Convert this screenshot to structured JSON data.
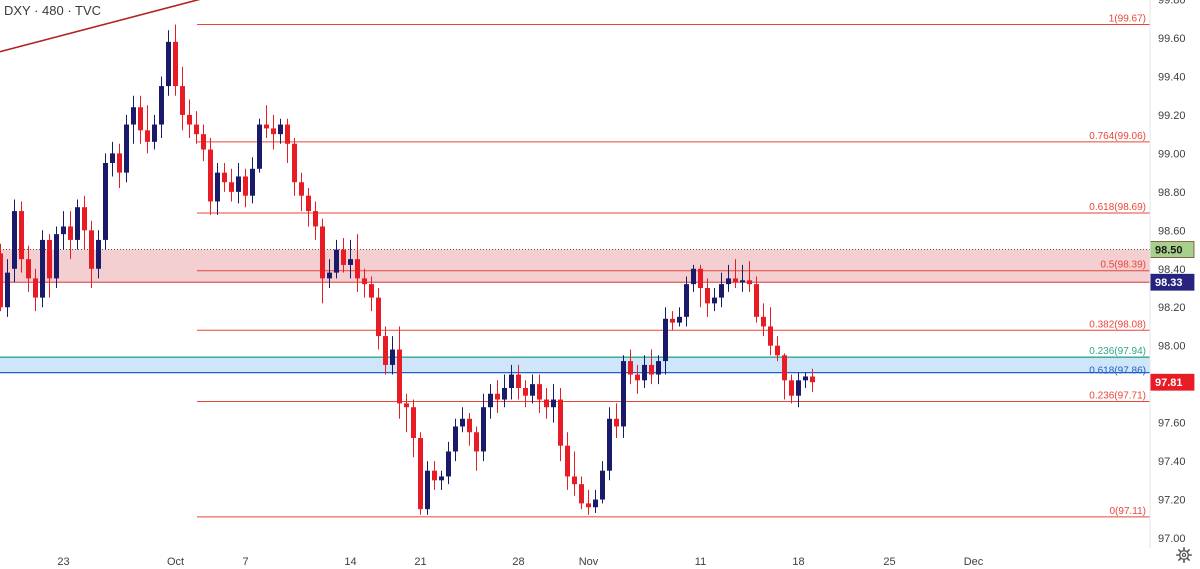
{
  "header": {
    "symbol": "DXY",
    "interval": "480",
    "source": "TVC"
  },
  "colors": {
    "up": "#1a1a6b",
    "down": "#e81c25",
    "fib": "#e8463a",
    "zone_red_fill": "#f3cfd2",
    "zone_red_line": "#e1565c",
    "zone_blue_fill": "#cfe6fa",
    "zone_blue_line": "#1f5fc9",
    "zone_green_line": "#2ea58a",
    "trend": "#b22222",
    "axis_text": "#404040"
  },
  "chart_data": {
    "type": "candlestick",
    "title": "DXY · 480 · TVC",
    "y_axis": {
      "range": [
        96.95,
        99.8
      ],
      "ticks": [
        "97.00",
        "97.20",
        "97.40",
        "97.60",
        "97.80",
        "98.00",
        "98.20",
        "98.40",
        "98.60",
        "98.80",
        "99.00",
        "99.20",
        "99.40",
        "99.60",
        "99.80"
      ]
    },
    "x_axis": {
      "ticks": [
        {
          "label": "23",
          "i": 9
        },
        {
          "label": "Oct",
          "i": 25
        },
        {
          "label": "7",
          "i": 35
        },
        {
          "label": "14",
          "i": 50
        },
        {
          "label": "21",
          "i": 60
        },
        {
          "label": "28",
          "i": 74
        },
        {
          "label": "Nov",
          "i": 84
        },
        {
          "label": "11",
          "i": 100
        },
        {
          "label": "18",
          "i": 114
        },
        {
          "label": "25",
          "i": 127
        },
        {
          "label": "Dec",
          "i": 139
        }
      ]
    },
    "candles": [
      [
        98.48,
        98.2,
        98.53,
        98.18
      ],
      [
        98.2,
        98.38,
        98.45,
        98.15
      ],
      [
        98.4,
        98.7,
        98.76,
        98.33
      ],
      [
        98.7,
        98.45,
        98.75,
        98.38
      ],
      [
        98.45,
        98.35,
        98.52,
        98.28
      ],
      [
        98.35,
        98.25,
        98.4,
        98.18
      ],
      [
        98.25,
        98.55,
        98.6,
        98.2
      ],
      [
        98.55,
        98.35,
        98.58,
        98.25
      ],
      [
        98.35,
        98.58,
        98.62,
        98.3
      ],
      [
        98.58,
        98.62,
        98.7,
        98.5
      ],
      [
        98.62,
        98.55,
        98.7,
        98.45
      ],
      [
        98.55,
        98.72,
        98.76,
        98.5
      ],
      [
        98.72,
        98.6,
        98.78,
        98.5
      ],
      [
        98.6,
        98.4,
        98.65,
        98.3
      ],
      [
        98.4,
        98.55,
        98.6,
        98.35
      ],
      [
        98.55,
        98.95,
        99.0,
        98.5
      ],
      [
        98.95,
        99.0,
        99.06,
        98.88
      ],
      [
        99.0,
        98.9,
        99.05,
        98.82
      ],
      [
        98.9,
        99.15,
        99.2,
        98.85
      ],
      [
        99.15,
        99.24,
        99.3,
        99.05
      ],
      [
        99.24,
        99.12,
        99.3,
        99.05
      ],
      [
        99.12,
        99.06,
        99.25,
        99.0
      ],
      [
        99.06,
        99.15,
        99.2,
        99.02
      ],
      [
        99.15,
        99.35,
        99.4,
        99.08
      ],
      [
        99.35,
        99.58,
        99.64,
        99.3
      ],
      [
        99.58,
        99.35,
        99.67,
        99.3
      ],
      [
        99.35,
        99.2,
        99.45,
        99.12
      ],
      [
        99.2,
        99.15,
        99.28,
        99.08
      ],
      [
        99.15,
        99.1,
        99.22,
        99.05
      ],
      [
        99.1,
        99.02,
        99.15,
        98.96
      ],
      [
        99.02,
        98.75,
        99.08,
        98.68
      ],
      [
        98.75,
        98.9,
        98.95,
        98.68
      ],
      [
        98.9,
        98.85,
        98.95,
        98.8
      ],
      [
        98.85,
        98.8,
        98.92,
        98.75
      ],
      [
        98.8,
        98.88,
        98.95,
        98.74
      ],
      [
        98.88,
        98.78,
        98.92,
        98.72
      ],
      [
        98.78,
        98.92,
        98.98,
        98.74
      ],
      [
        98.92,
        99.15,
        99.18,
        98.9
      ],
      [
        99.15,
        99.13,
        99.25,
        99.08
      ],
      [
        99.13,
        99.1,
        99.2,
        99.02
      ],
      [
        99.1,
        99.15,
        99.18,
        99.05
      ],
      [
        99.15,
        99.05,
        99.18,
        98.95
      ],
      [
        99.05,
        98.85,
        99.08,
        98.78
      ],
      [
        98.85,
        98.78,
        98.9,
        98.7
      ],
      [
        98.78,
        98.7,
        98.82,
        98.62
      ],
      [
        98.7,
        98.62,
        98.75,
        98.55
      ],
      [
        98.62,
        98.35,
        98.66,
        98.22
      ],
      [
        98.35,
        98.38,
        98.45,
        98.3
      ],
      [
        98.38,
        98.5,
        98.55,
        98.35
      ],
      [
        98.5,
        98.42,
        98.56,
        98.38
      ],
      [
        98.42,
        98.45,
        98.55,
        98.35
      ],
      [
        98.45,
        98.35,
        98.58,
        98.28
      ],
      [
        98.35,
        98.32,
        98.4,
        98.25
      ],
      [
        98.32,
        98.25,
        98.36,
        98.18
      ],
      [
        98.25,
        98.05,
        98.3,
        97.98
      ],
      [
        98.05,
        97.9,
        98.1,
        97.85
      ],
      [
        97.9,
        97.98,
        98.05,
        97.85
      ],
      [
        97.98,
        97.7,
        98.1,
        97.62
      ],
      [
        97.7,
        97.68,
        97.75,
        97.55
      ],
      [
        97.68,
        97.52,
        97.72,
        97.42
      ],
      [
        97.52,
        97.15,
        97.55,
        97.12
      ],
      [
        97.15,
        97.35,
        97.4,
        97.12
      ],
      [
        97.35,
        97.3,
        97.4,
        97.25
      ],
      [
        97.3,
        97.32,
        97.35,
        97.25
      ],
      [
        97.32,
        97.45,
        97.5,
        97.28
      ],
      [
        97.45,
        97.58,
        97.62,
        97.4
      ],
      [
        97.58,
        97.62,
        97.68,
        97.55
      ],
      [
        97.62,
        97.55,
        97.65,
        97.48
      ],
      [
        97.55,
        97.45,
        97.58,
        97.35
      ],
      [
        97.45,
        97.68,
        97.75,
        97.4
      ],
      [
        97.68,
        97.75,
        97.8,
        97.62
      ],
      [
        97.75,
        97.72,
        97.82,
        97.65
      ],
      [
        97.72,
        97.78,
        97.85,
        97.68
      ],
      [
        97.78,
        97.85,
        97.9,
        97.72
      ],
      [
        97.85,
        97.78,
        97.9,
        97.72
      ],
      [
        97.78,
        97.74,
        97.82,
        97.68
      ],
      [
        97.74,
        97.8,
        97.85,
        97.7
      ],
      [
        97.8,
        97.72,
        97.85,
        97.65
      ],
      [
        97.72,
        97.68,
        97.78,
        97.62
      ],
      [
        97.68,
        97.72,
        97.8,
        97.6
      ],
      [
        97.72,
        97.48,
        97.78,
        97.4
      ],
      [
        97.48,
        97.32,
        97.55,
        97.25
      ],
      [
        97.32,
        97.28,
        97.45,
        97.22
      ],
      [
        97.28,
        97.18,
        97.32,
        97.15
      ],
      [
        97.18,
        97.16,
        97.25,
        97.12
      ],
      [
        97.16,
        97.2,
        97.25,
        97.13
      ],
      [
        97.2,
        97.35,
        97.4,
        97.18
      ],
      [
        97.35,
        97.62,
        97.68,
        97.3
      ],
      [
        97.62,
        97.58,
        97.7,
        97.52
      ],
      [
        97.58,
        97.92,
        97.95,
        97.52
      ],
      [
        97.92,
        97.85,
        97.98,
        97.8
      ],
      [
        97.85,
        97.82,
        97.9,
        97.75
      ],
      [
        97.82,
        97.9,
        97.95,
        97.78
      ],
      [
        97.9,
        97.85,
        97.98,
        97.8
      ],
      [
        97.85,
        97.92,
        97.95,
        97.8
      ],
      [
        97.92,
        98.14,
        98.2,
        97.85
      ],
      [
        98.14,
        98.12,
        98.18,
        98.08
      ],
      [
        98.12,
        98.15,
        98.2,
        98.1
      ],
      [
        98.15,
        98.32,
        98.36,
        98.1
      ],
      [
        98.32,
        98.4,
        98.42,
        98.28
      ],
      [
        98.4,
        98.3,
        98.42,
        98.2
      ],
      [
        98.3,
        98.22,
        98.35,
        98.15
      ],
      [
        98.22,
        98.25,
        98.3,
        98.18
      ],
      [
        98.25,
        98.32,
        98.38,
        98.2
      ],
      [
        98.32,
        98.35,
        98.42,
        98.28
      ],
      [
        98.35,
        98.33,
        98.45,
        98.3
      ],
      [
        98.33,
        98.34,
        98.42,
        98.28
      ],
      [
        98.34,
        98.32,
        98.44,
        98.28
      ],
      [
        98.32,
        98.15,
        98.36,
        98.12
      ],
      [
        98.15,
        98.1,
        98.22,
        98.05
      ],
      [
        98.1,
        98.0,
        98.2,
        97.95
      ],
      [
        98.0,
        97.95,
        98.05,
        97.92
      ],
      [
        97.95,
        97.82,
        97.96,
        97.72
      ],
      [
        97.82,
        97.74,
        97.85,
        97.7
      ],
      [
        97.74,
        97.82,
        97.86,
        97.68
      ],
      [
        97.82,
        97.84,
        97.86,
        97.78
      ],
      [
        97.84,
        97.81,
        97.88,
        97.76
      ]
    ],
    "fib_levels": [
      {
        "label": "1(99.67)",
        "value": 99.67
      },
      {
        "label": "0.764(99.06)",
        "value": 99.06
      },
      {
        "label": "0.618(98.69)",
        "value": 98.69
      },
      {
        "label": "0.5(98.39)",
        "value": 98.39
      },
      {
        "label": "0.382(98.08)",
        "value": 98.08
      },
      {
        "label": "0.236(97.71)",
        "value": 97.71
      },
      {
        "label": "0(97.11)",
        "value": 97.11
      }
    ],
    "zones": [
      {
        "name": "resistance",
        "top": 98.5,
        "bottom": 98.33
      },
      {
        "name": "support",
        "top": 97.94,
        "bottom": 97.86
      }
    ],
    "zone_labels": [
      {
        "label": "0.236(97.94)",
        "value": 97.94
      },
      {
        "label": "0.618(97.86)",
        "value": 97.86
      }
    ],
    "price_tags": [
      {
        "label": "98.50",
        "value": 98.5
      },
      {
        "label": "98.33",
        "value": 98.33
      },
      {
        "label": "97.81",
        "value": 97.81
      }
    ],
    "trendline": {
      "start": [
        -1,
        99.52
      ],
      "end": [
        42,
        99.93
      ]
    }
  }
}
